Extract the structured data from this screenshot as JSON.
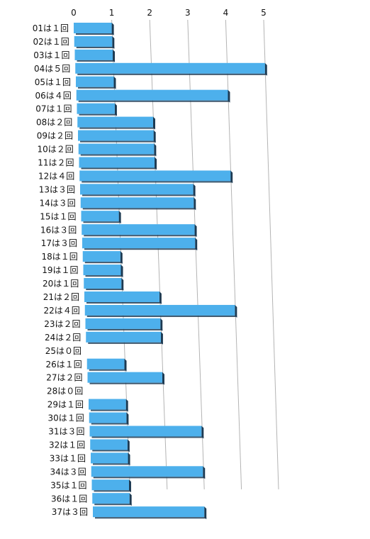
{
  "chart_data": {
    "type": "bar",
    "orientation": "horizontal",
    "categories": [
      "01は１回",
      "02は１回",
      "03は１回",
      "04は５回",
      "05は１回",
      "06は４回",
      "07は１回",
      "08は２回",
      "09は２回",
      "10は２回",
      "11は２回",
      "12は４回",
      "13は３回",
      "14は３回",
      "15は１回",
      "16は３回",
      "17は３回",
      "18は１回",
      "19は１回",
      "20は１回",
      "21は２回",
      "22は４回",
      "23は２回",
      "24は２回",
      "25は０回",
      "26は１回",
      "27は２回",
      "28は０回",
      "29は１回",
      "30は１回",
      "31は３回",
      "32は１回",
      "33は１回",
      "34は３回",
      "35は１回",
      "36は１回",
      "37は３回"
    ],
    "values": [
      1,
      1,
      1,
      5,
      1,
      4,
      1,
      2,
      2,
      2,
      2,
      4,
      3,
      3,
      1,
      3,
      3,
      1,
      1,
      1,
      2,
      4,
      2,
      2,
      0,
      1,
      2,
      0,
      1,
      1,
      3,
      1,
      1,
      3,
      1,
      1,
      3
    ],
    "xlim": [
      0,
      5
    ],
    "x_ticks": [
      "0",
      "1",
      "2",
      "3",
      "4",
      "5"
    ],
    "axis_position": "top",
    "grid": true,
    "legend": "none",
    "colors": {
      "bar_face": "#4db0ec",
      "bar_top": "#7ccaf5",
      "bar_side": "#1d3a52",
      "gridline": "#b4b4b4"
    }
  }
}
